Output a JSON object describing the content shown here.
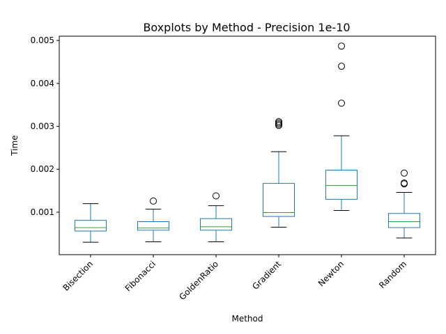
{
  "chart_data": {
    "type": "box",
    "title": "Boxplots by Method - Precision 1e-10",
    "xlabel": "Method",
    "ylabel": "Time",
    "ylim": [
      1e-05,
      0.0051
    ],
    "yticks": [
      {
        "value": 0.001,
        "label": "0.001"
      },
      {
        "value": 0.002,
        "label": "0.002"
      },
      {
        "value": 0.003,
        "label": "0.003"
      },
      {
        "value": 0.004,
        "label": "0.004"
      },
      {
        "value": 0.005,
        "label": "0.005"
      }
    ],
    "grid": false,
    "categories": [
      "Bisection",
      "Fibonacci",
      "GoldenRatio",
      "Gradient",
      "Newton",
      "Random"
    ],
    "boxes": [
      {
        "name": "Bisection",
        "whisker_low": 0.0003,
        "q1": 0.00056,
        "median": 0.00064,
        "q3": 0.00081,
        "whisker_high": 0.0012,
        "outliers": []
      },
      {
        "name": "Fibonacci",
        "whisker_low": 0.00031,
        "q1": 0.00058,
        "median": 0.00063,
        "q3": 0.00078,
        "whisker_high": 0.00107,
        "outliers": [
          0.00126
        ]
      },
      {
        "name": "GoldenRatio",
        "whisker_low": 0.00031,
        "q1": 0.00058,
        "median": 0.00066,
        "q3": 0.00085,
        "whisker_high": 0.00115,
        "outliers": [
          0.00138
        ]
      },
      {
        "name": "Gradient",
        "whisker_low": 0.00065,
        "q1": 0.0009,
        "median": 0.00099,
        "q3": 0.00167,
        "whisker_high": 0.00241,
        "outliers": [
          0.00302,
          0.00305,
          0.00308,
          0.00311
        ]
      },
      {
        "name": "Newton",
        "whisker_low": 0.00104,
        "q1": 0.0013,
        "median": 0.00162,
        "q3": 0.00198,
        "whisker_high": 0.00278,
        "outliers": [
          0.00354,
          0.0044,
          0.00487
        ]
      },
      {
        "name": "Random",
        "whisker_low": 0.0004,
        "q1": 0.00064,
        "median": 0.00078,
        "q3": 0.00097,
        "whisker_high": 0.00146,
        "outliers": [
          0.00166,
          0.00168,
          0.00191
        ]
      }
    ],
    "colors": {
      "box": "#1f77b4",
      "median": "#2ca02c",
      "whisker": "#1f77b4",
      "cap": "#000000",
      "outlier": "#000000"
    }
  }
}
